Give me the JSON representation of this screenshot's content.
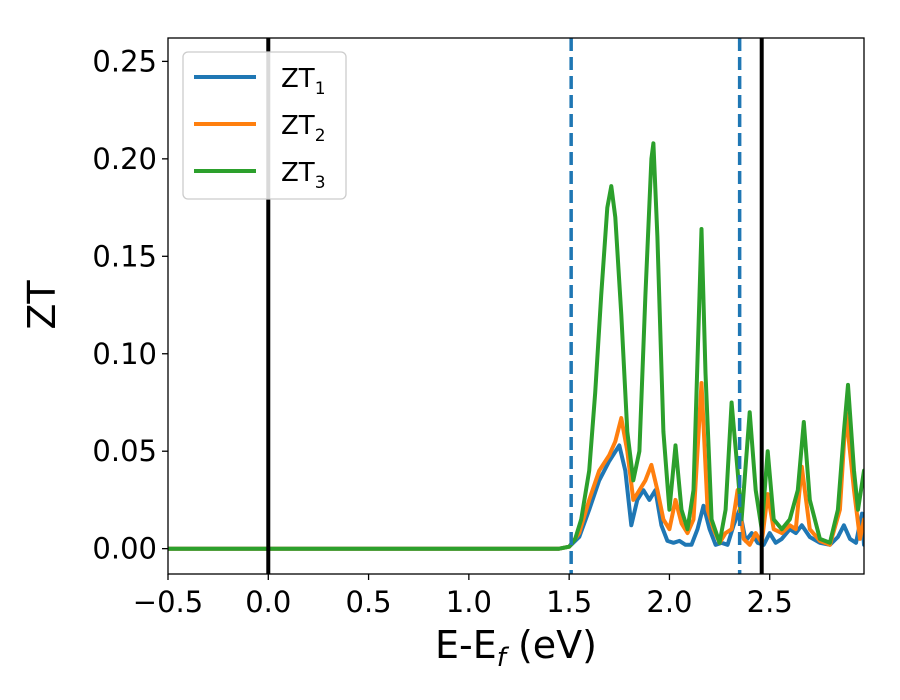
{
  "chart_data": {
    "type": "line",
    "title": "",
    "xlabel_main": "E-E",
    "xlabel_sub": "f",
    "xlabel_unit": " (eV)",
    "ylabel": "ZT",
    "xlim": [
      -0.5,
      2.97
    ],
    "ylim": [
      -0.013,
      0.262
    ],
    "xticks": [
      -0.5,
      0.0,
      0.5,
      1.0,
      1.5,
      2.0,
      2.5
    ],
    "xtick_labels": [
      "−0.5",
      "0.0",
      "0.5",
      "1.0",
      "1.5",
      "2.0",
      "2.5"
    ],
    "yticks": [
      0.0,
      0.05,
      0.1,
      0.15,
      0.2,
      0.25
    ],
    "ytick_labels": [
      "0.00",
      "0.05",
      "0.10",
      "0.15",
      "0.20",
      "0.25"
    ],
    "grid": false,
    "legend_position": "top-left",
    "vertical_lines": [
      {
        "x": 0.0,
        "style": "solid",
        "color": "#000000"
      },
      {
        "x": 2.46,
        "style": "solid",
        "color": "#000000"
      },
      {
        "x": 1.51,
        "style": "dashed",
        "color": "#1f77b4"
      },
      {
        "x": 2.35,
        "style": "dashed",
        "color": "#1f77b4"
      }
    ],
    "series": [
      {
        "name": "ZT",
        "name_sub": "1",
        "color": "#1f77b4",
        "points": [
          [
            -0.5,
            0
          ],
          [
            1.45,
            0
          ],
          [
            1.5,
            0.001
          ],
          [
            1.55,
            0.006
          ],
          [
            1.6,
            0.02
          ],
          [
            1.65,
            0.035
          ],
          [
            1.7,
            0.045
          ],
          [
            1.75,
            0.053
          ],
          [
            1.78,
            0.04
          ],
          [
            1.81,
            0.012
          ],
          [
            1.84,
            0.025
          ],
          [
            1.87,
            0.03
          ],
          [
            1.9,
            0.025
          ],
          [
            1.93,
            0.03
          ],
          [
            1.96,
            0.012
          ],
          [
            1.99,
            0.004
          ],
          [
            2.02,
            0.003
          ],
          [
            2.05,
            0.004
          ],
          [
            2.08,
            0.002
          ],
          [
            2.11,
            0.002
          ],
          [
            2.14,
            0.01
          ],
          [
            2.17,
            0.022
          ],
          [
            2.2,
            0.01
          ],
          [
            2.23,
            0.002
          ],
          [
            2.26,
            0.003
          ],
          [
            2.29,
            0.002
          ],
          [
            2.32,
            0.012
          ],
          [
            2.35,
            0.02
          ],
          [
            2.38,
            0.004
          ],
          [
            2.41,
            0.008
          ],
          [
            2.44,
            0.003
          ],
          [
            2.47,
            0.002
          ],
          [
            2.5,
            0.008
          ],
          [
            2.53,
            0.003
          ],
          [
            2.56,
            0.005
          ],
          [
            2.6,
            0.01
          ],
          [
            2.63,
            0.008
          ],
          [
            2.66,
            0.012
          ],
          [
            2.7,
            0.006
          ],
          [
            2.75,
            0.003
          ],
          [
            2.8,
            0.002
          ],
          [
            2.84,
            0.006
          ],
          [
            2.87,
            0.012
          ],
          [
            2.9,
            0.005
          ],
          [
            2.93,
            0.003
          ],
          [
            2.96,
            0.018
          ],
          [
            2.97,
            0.002
          ]
        ]
      },
      {
        "name": "ZT",
        "name_sub": "2",
        "color": "#ff7f0e",
        "points": [
          [
            -0.5,
            0
          ],
          [
            1.45,
            0
          ],
          [
            1.5,
            0.001
          ],
          [
            1.55,
            0.008
          ],
          [
            1.6,
            0.025
          ],
          [
            1.65,
            0.04
          ],
          [
            1.7,
            0.048
          ],
          [
            1.73,
            0.055
          ],
          [
            1.76,
            0.067
          ],
          [
            1.79,
            0.05
          ],
          [
            1.82,
            0.025
          ],
          [
            1.85,
            0.03
          ],
          [
            1.88,
            0.035
          ],
          [
            1.91,
            0.043
          ],
          [
            1.94,
            0.03
          ],
          [
            1.97,
            0.015
          ],
          [
            2.0,
            0.01
          ],
          [
            2.03,
            0.025
          ],
          [
            2.06,
            0.013
          ],
          [
            2.09,
            0.008
          ],
          [
            2.12,
            0.015
          ],
          [
            2.16,
            0.085
          ],
          [
            2.19,
            0.02
          ],
          [
            2.22,
            0.01
          ],
          [
            2.25,
            0.003
          ],
          [
            2.28,
            0.008
          ],
          [
            2.31,
            0.01
          ],
          [
            2.34,
            0.03
          ],
          [
            2.37,
            0.005
          ],
          [
            2.4,
            0.002
          ],
          [
            2.43,
            0.008
          ],
          [
            2.46,
            0.003
          ],
          [
            2.49,
            0.028
          ],
          [
            2.52,
            0.01
          ],
          [
            2.56,
            0.008
          ],
          [
            2.6,
            0.012
          ],
          [
            2.63,
            0.01
          ],
          [
            2.66,
            0.042
          ],
          [
            2.7,
            0.01
          ],
          [
            2.75,
            0.004
          ],
          [
            2.8,
            0.002
          ],
          [
            2.85,
            0.02
          ],
          [
            2.88,
            0.07
          ],
          [
            2.92,
            0.03
          ],
          [
            2.95,
            0.005
          ],
          [
            2.97,
            0.015
          ]
        ]
      },
      {
        "name": "ZT",
        "name_sub": "3",
        "color": "#2ca02c",
        "points": [
          [
            -0.5,
            0
          ],
          [
            1.45,
            0
          ],
          [
            1.5,
            0.001
          ],
          [
            1.53,
            0.005
          ],
          [
            1.56,
            0.015
          ],
          [
            1.6,
            0.04
          ],
          [
            1.63,
            0.08
          ],
          [
            1.66,
            0.13
          ],
          [
            1.69,
            0.175
          ],
          [
            1.71,
            0.186
          ],
          [
            1.73,
            0.17
          ],
          [
            1.76,
            0.12
          ],
          [
            1.79,
            0.06
          ],
          [
            1.82,
            0.035
          ],
          [
            1.85,
            0.05
          ],
          [
            1.88,
            0.13
          ],
          [
            1.91,
            0.2
          ],
          [
            1.92,
            0.208
          ],
          [
            1.94,
            0.16
          ],
          [
            1.97,
            0.06
          ],
          [
            2.0,
            0.02
          ],
          [
            2.03,
            0.053
          ],
          [
            2.06,
            0.02
          ],
          [
            2.09,
            0.01
          ],
          [
            2.12,
            0.03
          ],
          [
            2.15,
            0.13
          ],
          [
            2.16,
            0.164
          ],
          [
            2.18,
            0.09
          ],
          [
            2.21,
            0.015
          ],
          [
            2.25,
            0.003
          ],
          [
            2.28,
            0.02
          ],
          [
            2.31,
            0.075
          ],
          [
            2.34,
            0.04
          ],
          [
            2.36,
            0.015
          ],
          [
            2.4,
            0.07
          ],
          [
            2.43,
            0.03
          ],
          [
            2.46,
            0.01
          ],
          [
            2.49,
            0.05
          ],
          [
            2.52,
            0.015
          ],
          [
            2.56,
            0.01
          ],
          [
            2.6,
            0.015
          ],
          [
            2.64,
            0.03
          ],
          [
            2.67,
            0.065
          ],
          [
            2.7,
            0.025
          ],
          [
            2.75,
            0.005
          ],
          [
            2.8,
            0.003
          ],
          [
            2.84,
            0.02
          ],
          [
            2.87,
            0.06
          ],
          [
            2.89,
            0.084
          ],
          [
            2.92,
            0.04
          ],
          [
            2.94,
            0.02
          ],
          [
            2.97,
            0.04
          ]
        ]
      }
    ]
  }
}
